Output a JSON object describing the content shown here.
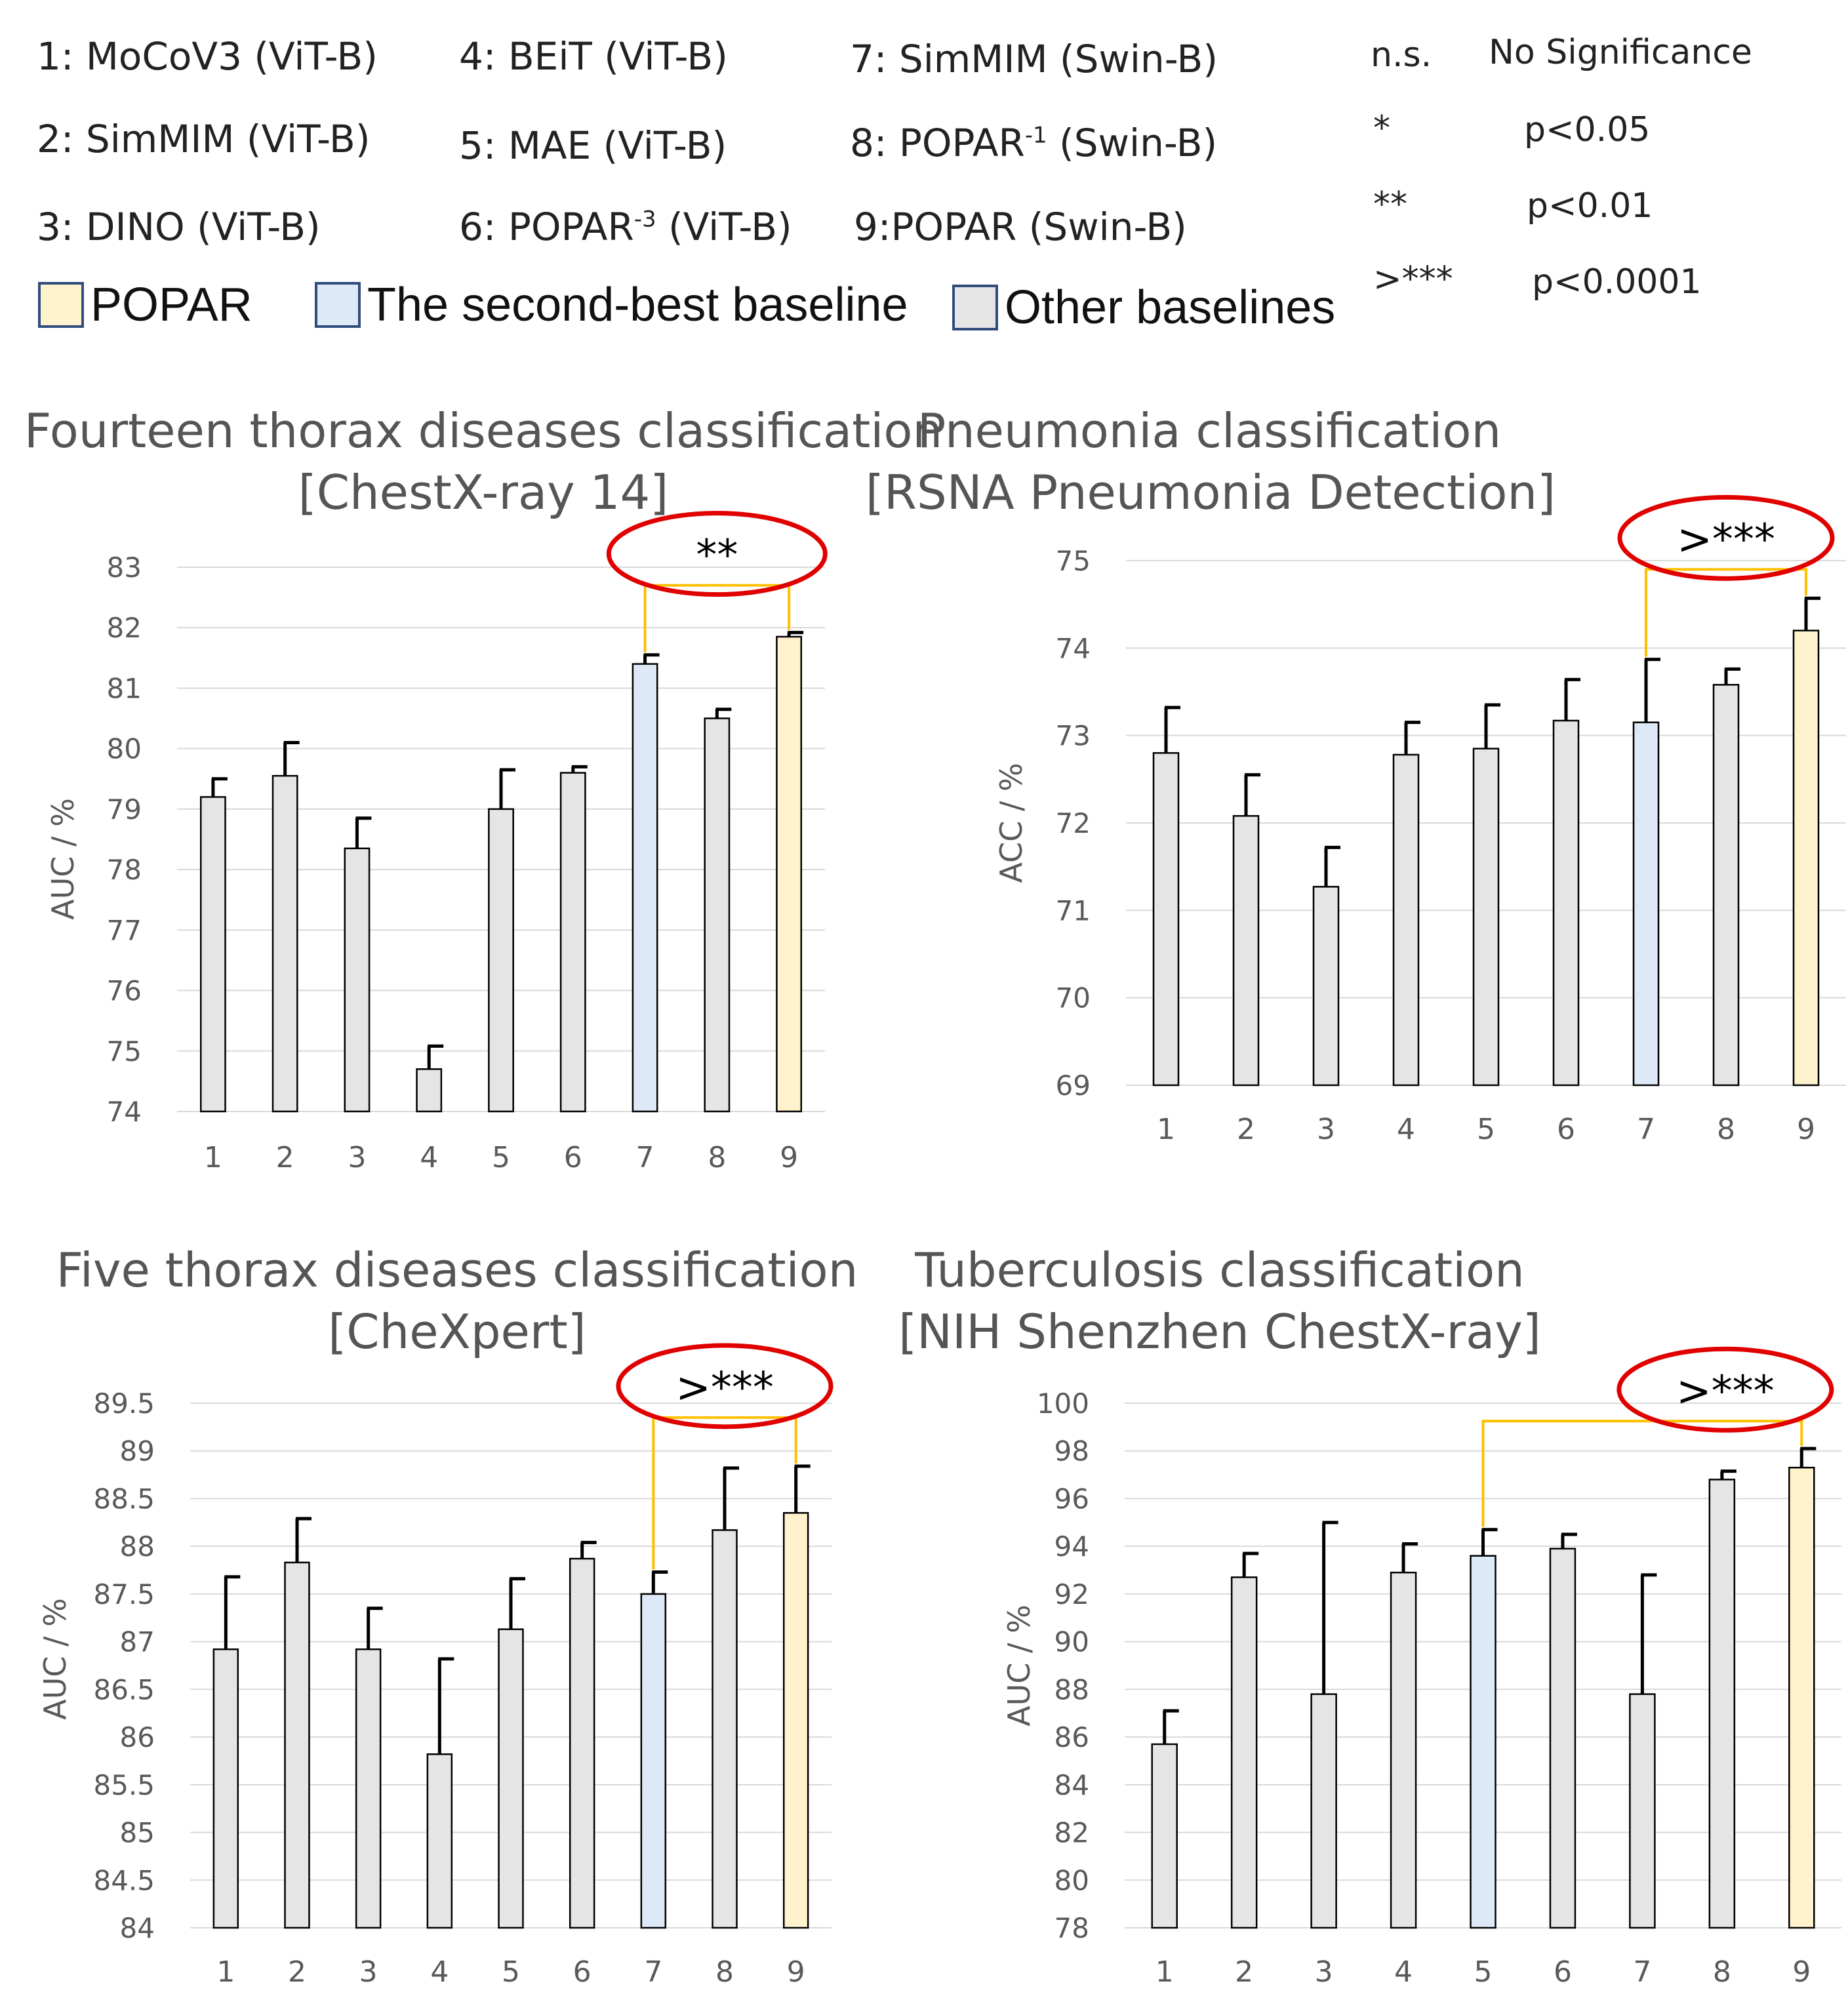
{
  "legend": {
    "models": [
      {
        "label": "1: MoCoV3 (ViT-B)"
      },
      {
        "label": "2: SimMIM (ViT-B)"
      },
      {
        "label": "3: DINO (ViT-B)"
      },
      {
        "label": "4: BEiT (ViT-B)"
      },
      {
        "label": "5: MAE (ViT-B)"
      },
      {
        "label": "6: POPAR",
        "sup": "-3",
        "suffix": " (ViT-B)"
      },
      {
        "label": "7: SimMIM (Swin-B)"
      },
      {
        "label": "8: POPAR",
        "sup": "-1",
        "suffix": " (Swin-B)"
      },
      {
        "label": "9:POPAR (Swin-B)"
      }
    ],
    "significance": [
      {
        "symbol": "n.s.",
        "meaning": "No Significance"
      },
      {
        "symbol": "*",
        "meaning": "p<0.05"
      },
      {
        "symbol": "**",
        "meaning": "p<0.01"
      },
      {
        "symbol": ">***",
        "meaning": "p<0.0001"
      }
    ],
    "color_keys": [
      {
        "label": "POPAR",
        "color": "#fff2cc"
      },
      {
        "label": "The second-best baseline",
        "color": "#dde9f6"
      },
      {
        "label": "Other baselines",
        "color": "#e5e5e5"
      }
    ]
  },
  "colors": {
    "popar": "#fff2cc",
    "second": "#dde9f6",
    "other": "#e5e5e5",
    "bracket": "#ffc000",
    "ellipse": "#e00000"
  },
  "chart_data": [
    {
      "type": "bar",
      "title": "Fourteen thorax diseases classification",
      "subtitle": "[ChestX-ray 14]",
      "ylabel": "AUC / %",
      "categories": [
        "1",
        "2",
        "3",
        "4",
        "5",
        "6",
        "7",
        "8",
        "9"
      ],
      "values": [
        79.2,
        79.55,
        78.35,
        74.7,
        79.0,
        79.6,
        81.4,
        80.5,
        81.85
      ],
      "errors": [
        0.3,
        0.55,
        0.5,
        0.38,
        0.65,
        0.1,
        0.15,
        0.15,
        0.07
      ],
      "bar_kind": [
        "other",
        "other",
        "other",
        "other",
        "other",
        "other",
        "second",
        "other",
        "popar"
      ],
      "ylim": [
        74,
        83
      ],
      "yticks": [
        74,
        75,
        76,
        77,
        78,
        79,
        80,
        81,
        82,
        83
      ],
      "grid": true,
      "annotation": {
        "text": "**",
        "from": 7,
        "to": 9,
        "y": 82.7
      }
    },
    {
      "type": "bar",
      "title": "Pneumonia classification",
      "subtitle": "[RSNA Pneumonia Detection]",
      "ylabel": "ACC / %",
      "categories": [
        "1",
        "2",
        "3",
        "4",
        "5",
        "6",
        "7",
        "8",
        "9"
      ],
      "values": [
        72.8,
        72.08,
        71.27,
        72.78,
        72.85,
        73.17,
        73.15,
        73.58,
        74.2
      ],
      "errors": [
        0.52,
        0.47,
        0.45,
        0.37,
        0.5,
        0.47,
        0.72,
        0.18,
        0.37
      ],
      "bar_kind": [
        "other",
        "other",
        "other",
        "other",
        "other",
        "other",
        "second",
        "other",
        "popar"
      ],
      "ylim": [
        69,
        75
      ],
      "yticks": [
        69,
        70,
        71,
        72,
        73,
        74,
        75
      ],
      "grid": true,
      "annotation": {
        "text": ">***",
        "from": 7,
        "to": 9,
        "y": 74.9
      }
    },
    {
      "type": "bar",
      "title": "Five thorax diseases classification",
      "subtitle": "[CheXpert]",
      "ylabel": "AUC / %",
      "categories": [
        "1",
        "2",
        "3",
        "4",
        "5",
        "6",
        "7",
        "8",
        "9"
      ],
      "values": [
        86.92,
        87.83,
        86.92,
        85.82,
        87.13,
        87.87,
        87.5,
        88.17,
        88.35
      ],
      "errors": [
        0.76,
        0.46,
        0.43,
        1.0,
        0.53,
        0.17,
        0.23,
        0.65,
        0.49
      ],
      "bar_kind": [
        "other",
        "other",
        "other",
        "other",
        "other",
        "other",
        "second",
        "other",
        "popar"
      ],
      "ylim": [
        84,
        89.5
      ],
      "yticks": [
        84,
        84.5,
        85,
        85.5,
        86,
        86.5,
        87,
        87.5,
        88,
        88.5,
        89,
        89.5
      ],
      "grid": true,
      "annotation": {
        "text": ">***",
        "from": 7,
        "to": 9,
        "y": 89.35
      }
    },
    {
      "type": "bar",
      "title": "Tuberculosis classification",
      "subtitle": "[NIH Shenzhen ChestX-ray]",
      "ylabel": "AUC / %",
      "categories": [
        "1",
        "2",
        "3",
        "4",
        "5",
        "6",
        "7",
        "8",
        "9"
      ],
      "values": [
        85.7,
        92.7,
        87.8,
        92.9,
        93.6,
        93.9,
        87.8,
        96.8,
        97.3
      ],
      "errors": [
        1.4,
        1.0,
        7.2,
        1.2,
        1.1,
        0.6,
        5.0,
        0.35,
        0.8
      ],
      "bar_kind": [
        "other",
        "other",
        "other",
        "other",
        "second",
        "other",
        "other",
        "other",
        "popar"
      ],
      "ylim": [
        78,
        100
      ],
      "yticks": [
        78,
        80,
        82,
        84,
        86,
        88,
        90,
        92,
        94,
        96,
        98,
        100
      ],
      "grid": true,
      "annotation": {
        "text": ">***",
        "from": 5,
        "to": 9,
        "y": 99.25
      }
    }
  ]
}
